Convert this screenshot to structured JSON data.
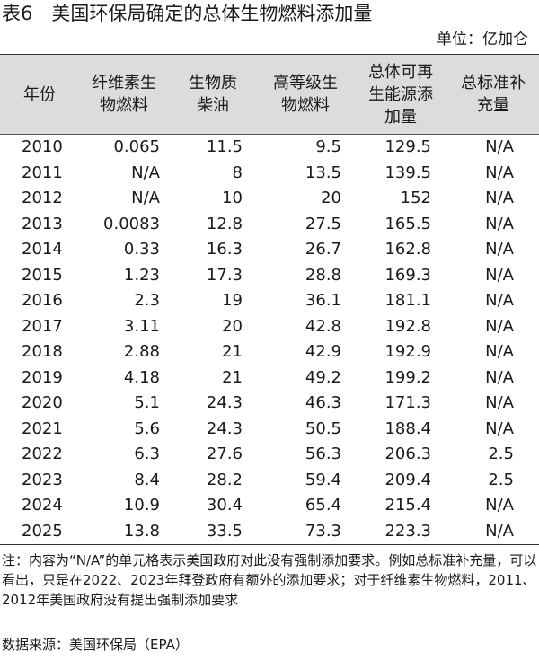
{
  "title": "表6　美国环保局确定的总体生物燃料添加量",
  "unit": "单位：亿加仑",
  "table": {
    "headers": [
      [
        "年份"
      ],
      [
        "纤维素生",
        "物燃料"
      ],
      [
        "生物质",
        "柴油"
      ],
      [
        "高等级生",
        "物燃料"
      ],
      [
        "总体可再",
        "生能源添",
        "加量"
      ],
      [
        "总标准补",
        "充量"
      ]
    ],
    "rows": [
      [
        "2010",
        "0.065",
        "11.5",
        "9.5",
        "129.5",
        "N/A"
      ],
      [
        "2011",
        "N/A",
        "8",
        "13.5",
        "139.5",
        "N/A"
      ],
      [
        "2012",
        "N/A",
        "10",
        "20",
        "152",
        "N/A"
      ],
      [
        "2013",
        "0.0083",
        "12.8",
        "27.5",
        "165.5",
        "N/A"
      ],
      [
        "2014",
        "0.33",
        "16.3",
        "26.7",
        "162.8",
        "N/A"
      ],
      [
        "2015",
        "1.23",
        "17.3",
        "28.8",
        "169.3",
        "N/A"
      ],
      [
        "2016",
        "2.3",
        "19",
        "36.1",
        "181.1",
        "N/A"
      ],
      [
        "2017",
        "3.11",
        "20",
        "42.8",
        "192.8",
        "N/A"
      ],
      [
        "2018",
        "2.88",
        "21",
        "42.9",
        "192.9",
        "N/A"
      ],
      [
        "2019",
        "4.18",
        "21",
        "49.2",
        "199.2",
        "N/A"
      ],
      [
        "2020",
        "5.1",
        "24.3",
        "46.3",
        "171.3",
        "N/A"
      ],
      [
        "2021",
        "5.6",
        "24.3",
        "50.5",
        "188.4",
        "N/A"
      ],
      [
        "2022",
        "6.3",
        "27.6",
        "56.3",
        "206.3",
        "2.5"
      ],
      [
        "2023",
        "8.4",
        "28.2",
        "59.4",
        "209.4",
        "2.5"
      ],
      [
        "2024",
        "10.9",
        "30.4",
        "65.4",
        "215.4",
        "N/A"
      ],
      [
        "2025",
        "13.8",
        "33.5",
        "73.3",
        "223.3",
        "N/A"
      ]
    ]
  },
  "note": "注：内容为“N/A”的单元格表示美国政府对此没有强制添加要求。例如总标准补充量，可以看出，只是在2022、2023年拜登政府有额外的添加要求；对于纤维素生物燃料，2011、2012年美国政府没有提出强制添加要求",
  "source": "数据来源：美国环保局（EPA）"
}
